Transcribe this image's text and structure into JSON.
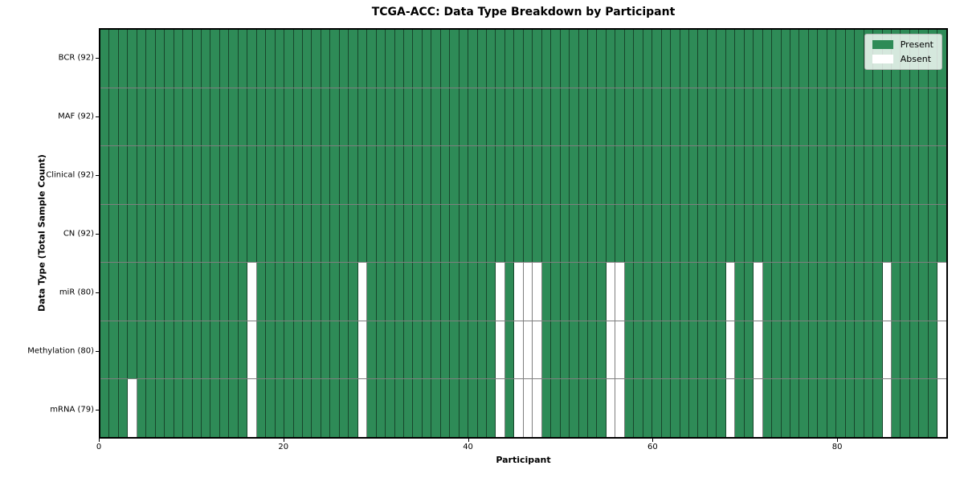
{
  "chart_data": {
    "type": "heatmap",
    "title": "TCGA-ACC: Data Type Breakdown by Participant",
    "xlabel": "Participant",
    "ylabel": "Data Type (Total Sample Count)",
    "n_participants": 92,
    "x_axis_range": [
      0,
      92
    ],
    "x_ticks": [
      0,
      20,
      40,
      60,
      80
    ],
    "legend_position": "upper right",
    "legend": {
      "present": "Present",
      "absent": "Absent"
    },
    "colors": {
      "present": "#2e8b57",
      "absent": "#ffffff",
      "grid": "rgba(0,0,0,0.5)"
    },
    "rows": [
      {
        "label": "BCR (92)",
        "data_type": "BCR",
        "sample_count": 92,
        "absent_participants": []
      },
      {
        "label": "MAF (92)",
        "data_type": "MAF",
        "sample_count": 92,
        "absent_participants": []
      },
      {
        "label": "Clinical (92)",
        "data_type": "Clinical",
        "sample_count": 92,
        "absent_participants": []
      },
      {
        "label": "CN (92)",
        "data_type": "CN",
        "sample_count": 92,
        "absent_participants": []
      },
      {
        "label": "miR (80)",
        "data_type": "miR",
        "sample_count": 80,
        "absent_participants": [
          16,
          28,
          43,
          45,
          46,
          47,
          55,
          56,
          68,
          71,
          85,
          91
        ]
      },
      {
        "label": "Methylation (80)",
        "data_type": "Methylation",
        "sample_count": 80,
        "absent_participants": [
          16,
          28,
          43,
          45,
          46,
          47,
          55,
          56,
          68,
          71,
          85,
          91
        ]
      },
      {
        "label": "mRNA (79)",
        "data_type": "mRNA",
        "sample_count": 79,
        "absent_participants": [
          3,
          16,
          28,
          43,
          45,
          46,
          47,
          55,
          56,
          68,
          71,
          85,
          91
        ]
      }
    ]
  }
}
